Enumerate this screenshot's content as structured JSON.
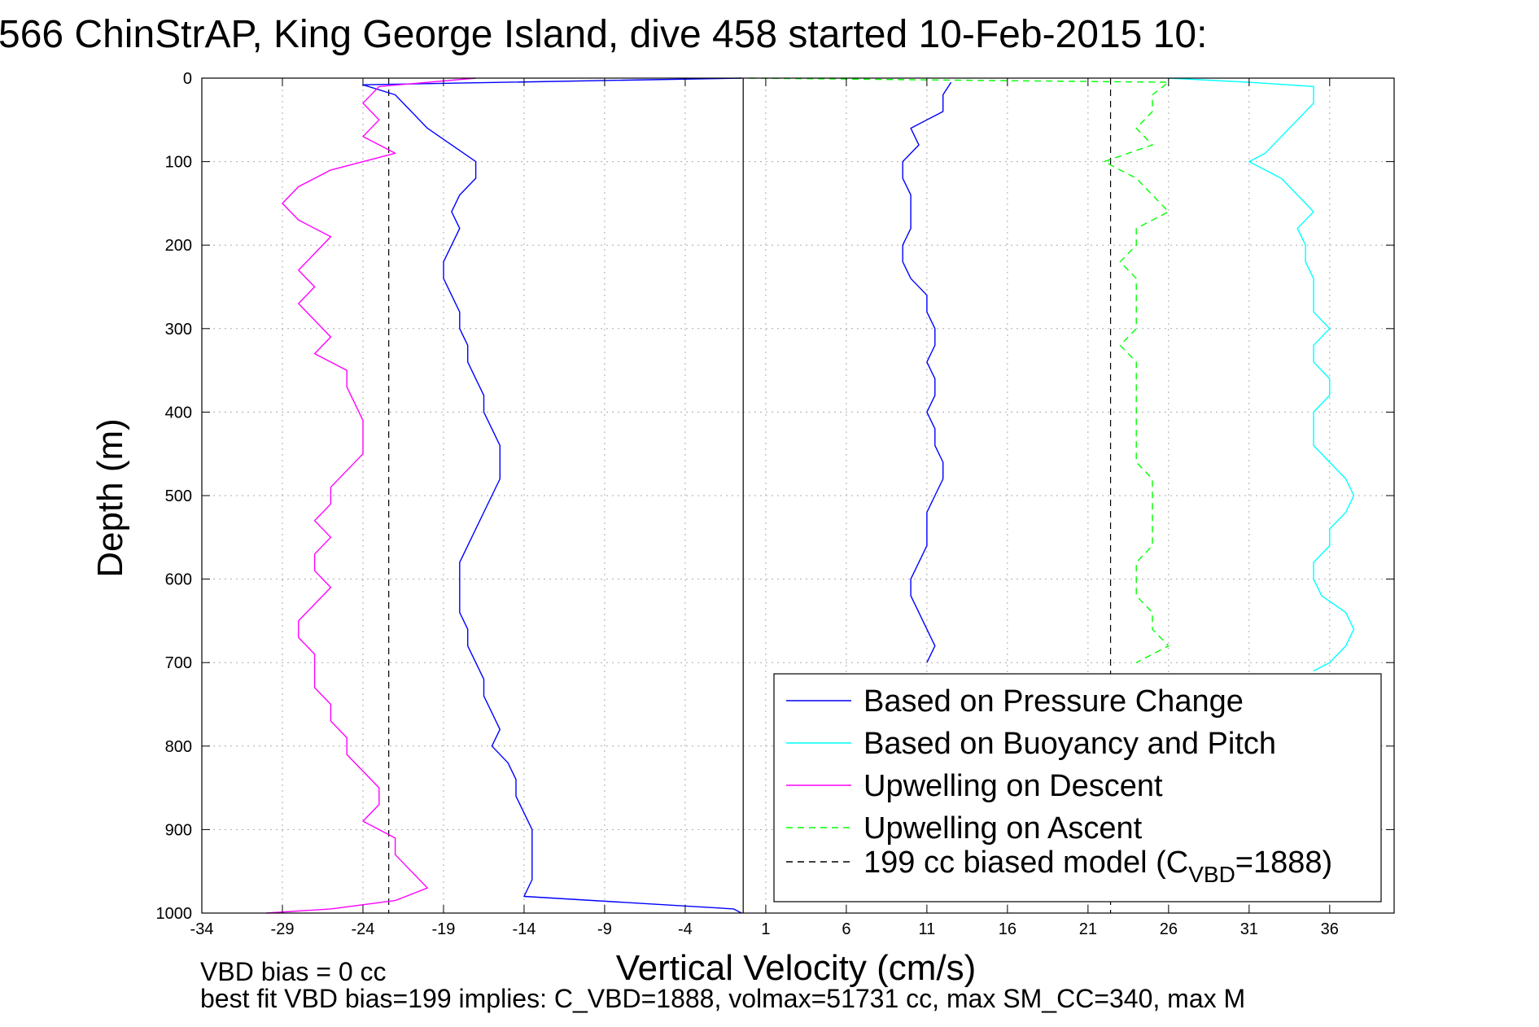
{
  "figure": {
    "title": "566 ChinStrAP, King George Island, dive 458 started 10-Feb-2015 10:",
    "footer_line1": "VBD bias = 0 cc",
    "footer_line2": "best fit VBD bias=199 implies: C_VBD=1888, volmax=51731 cc, max SM_CC=340, max M"
  },
  "chart_data": {
    "type": "line",
    "xlabel": "Vertical Velocity (cm/s)",
    "ylabel": "Depth (m)",
    "xlim": [
      -34,
      40
    ],
    "ylim": [
      0,
      1000
    ],
    "y_reversed": true,
    "grid": true,
    "x_ticks": [
      -34,
      -29,
      -24,
      -19,
      -14,
      -9,
      -4,
      1,
      6,
      11,
      16,
      21,
      26,
      31,
      36
    ],
    "y_ticks": [
      0,
      100,
      200,
      300,
      400,
      500,
      600,
      700,
      800,
      900,
      1000
    ],
    "legend_position": "bottom-right",
    "legend": [
      {
        "label": "Based on Pressure Change",
        "color": "#0000ff",
        "dash": "solid"
      },
      {
        "label": "Based on Buoyancy and Pitch",
        "color": "#00ffff",
        "dash": "solid"
      },
      {
        "label": "Upwelling on Descent",
        "color": "#ff00ff",
        "dash": "solid"
      },
      {
        "label": "Upwelling on Ascent",
        "color": "#00ff00",
        "dash": "dashed"
      },
      {
        "label_pre": "199 cc biased model (C",
        "label_sub": "VBD",
        "label_post": "=1888)",
        "color": "#000000",
        "dash": "dashed"
      }
    ],
    "vertical_lines": [
      {
        "x": -22.4,
        "color": "#000000",
        "dash": "dashed",
        "note": "biased model descent"
      },
      {
        "x": 22.4,
        "color": "#000000",
        "dash": "dashed",
        "note": "biased model ascent"
      },
      {
        "x": -0.4,
        "color": "#000000",
        "dash": "solid",
        "note": "zero reference"
      }
    ],
    "series": [
      {
        "name": "Based on Pressure Change (descent)",
        "color": "#0000ff",
        "dash": "solid",
        "points": [
          [
            -0.5,
            0
          ],
          [
            -24,
            8
          ],
          [
            -22,
            20
          ],
          [
            -21,
            40
          ],
          [
            -20,
            60
          ],
          [
            -18.5,
            80
          ],
          [
            -17,
            100
          ],
          [
            -17,
            120
          ],
          [
            -18,
            140
          ],
          [
            -18.5,
            160
          ],
          [
            -18,
            180
          ],
          [
            -18.5,
            200
          ],
          [
            -19,
            220
          ],
          [
            -19,
            240
          ],
          [
            -18.5,
            260
          ],
          [
            -18,
            280
          ],
          [
            -18,
            300
          ],
          [
            -17.5,
            320
          ],
          [
            -17.5,
            340
          ],
          [
            -17,
            360
          ],
          [
            -16.5,
            380
          ],
          [
            -16.5,
            400
          ],
          [
            -16,
            420
          ],
          [
            -15.5,
            440
          ],
          [
            -15.5,
            460
          ],
          [
            -15.5,
            480
          ],
          [
            -16,
            500
          ],
          [
            -16.5,
            520
          ],
          [
            -17,
            540
          ],
          [
            -17.5,
            560
          ],
          [
            -18,
            580
          ],
          [
            -18,
            600
          ],
          [
            -18,
            620
          ],
          [
            -18,
            640
          ],
          [
            -17.5,
            660
          ],
          [
            -17.5,
            680
          ],
          [
            -17,
            700
          ],
          [
            -16.5,
            720
          ],
          [
            -16.5,
            740
          ],
          [
            -16,
            760
          ],
          [
            -15.5,
            780
          ],
          [
            -16,
            800
          ],
          [
            -15,
            820
          ],
          [
            -14.5,
            840
          ],
          [
            -14.5,
            860
          ],
          [
            -14,
            880
          ],
          [
            -13.5,
            900
          ],
          [
            -13.5,
            920
          ],
          [
            -13.5,
            940
          ],
          [
            -13.5,
            960
          ],
          [
            -14,
            980
          ],
          [
            -1,
            995
          ],
          [
            -0.5,
            1000
          ]
        ]
      },
      {
        "name": "Based on Pressure Change (ascent)",
        "color": "#0000ff",
        "dash": "solid",
        "points": [
          [
            12.5,
            5
          ],
          [
            12,
            20
          ],
          [
            12,
            40
          ],
          [
            10,
            60
          ],
          [
            10.5,
            80
          ],
          [
            9.5,
            100
          ],
          [
            9.5,
            120
          ],
          [
            10,
            140
          ],
          [
            10,
            160
          ],
          [
            10,
            180
          ],
          [
            9.5,
            200
          ],
          [
            9.5,
            220
          ],
          [
            10,
            240
          ],
          [
            11,
            260
          ],
          [
            11,
            280
          ],
          [
            11.5,
            300
          ],
          [
            11.5,
            320
          ],
          [
            11,
            340
          ],
          [
            11.5,
            360
          ],
          [
            11.5,
            380
          ],
          [
            11,
            400
          ],
          [
            11.5,
            420
          ],
          [
            11.5,
            440
          ],
          [
            12,
            460
          ],
          [
            12,
            480
          ],
          [
            11.5,
            500
          ],
          [
            11,
            520
          ],
          [
            11,
            540
          ],
          [
            11,
            560
          ],
          [
            10.5,
            580
          ],
          [
            10,
            600
          ],
          [
            10,
            620
          ],
          [
            10.5,
            640
          ],
          [
            11,
            660
          ],
          [
            11.5,
            680
          ],
          [
            11,
            700
          ]
        ]
      },
      {
        "name": "Based on Buoyancy and Pitch (ascent)",
        "color": "#00ffff",
        "dash": "solid",
        "points": [
          [
            26,
            0
          ],
          [
            31,
            5
          ],
          [
            35,
            10
          ],
          [
            35,
            30
          ],
          [
            34,
            50
          ],
          [
            33,
            70
          ],
          [
            32,
            90
          ],
          [
            31,
            100
          ],
          [
            33,
            120
          ],
          [
            34,
            140
          ],
          [
            35,
            160
          ],
          [
            34,
            180
          ],
          [
            34.5,
            200
          ],
          [
            34.5,
            220
          ],
          [
            35,
            240
          ],
          [
            35,
            260
          ],
          [
            35,
            280
          ],
          [
            36,
            300
          ],
          [
            35,
            320
          ],
          [
            35,
            340
          ],
          [
            36,
            360
          ],
          [
            36,
            380
          ],
          [
            35,
            400
          ],
          [
            35,
            420
          ],
          [
            35,
            440
          ],
          [
            36,
            460
          ],
          [
            37,
            480
          ],
          [
            37.5,
            500
          ],
          [
            37,
            520
          ],
          [
            36,
            540
          ],
          [
            36,
            560
          ],
          [
            35,
            580
          ],
          [
            35,
            600
          ],
          [
            35.5,
            620
          ],
          [
            37,
            640
          ],
          [
            37.5,
            660
          ],
          [
            37,
            680
          ],
          [
            36,
            700
          ],
          [
            35,
            710
          ]
        ]
      },
      {
        "name": "Upwelling on Descent",
        "color": "#ff00ff",
        "dash": "solid",
        "points": [
          [
            -17,
            0
          ],
          [
            -23,
            10
          ],
          [
            -24,
            30
          ],
          [
            -23,
            50
          ],
          [
            -24,
            70
          ],
          [
            -22,
            90
          ],
          [
            -26,
            110
          ],
          [
            -28,
            130
          ],
          [
            -29,
            150
          ],
          [
            -28,
            170
          ],
          [
            -26,
            190
          ],
          [
            -27,
            210
          ],
          [
            -28,
            230
          ],
          [
            -27,
            250
          ],
          [
            -28,
            270
          ],
          [
            -27,
            290
          ],
          [
            -26,
            310
          ],
          [
            -27,
            330
          ],
          [
            -25,
            350
          ],
          [
            -25,
            370
          ],
          [
            -24.5,
            390
          ],
          [
            -24,
            410
          ],
          [
            -24,
            430
          ],
          [
            -24,
            450
          ],
          [
            -25,
            470
          ],
          [
            -26,
            490
          ],
          [
            -26,
            510
          ],
          [
            -27,
            530
          ],
          [
            -26,
            550
          ],
          [
            -27,
            570
          ],
          [
            -27,
            590
          ],
          [
            -26,
            610
          ],
          [
            -27,
            630
          ],
          [
            -28,
            650
          ],
          [
            -28,
            670
          ],
          [
            -27,
            690
          ],
          [
            -27,
            710
          ],
          [
            -27,
            730
          ],
          [
            -26,
            750
          ],
          [
            -26,
            770
          ],
          [
            -25,
            790
          ],
          [
            -25,
            810
          ],
          [
            -24,
            830
          ],
          [
            -23,
            850
          ],
          [
            -23,
            870
          ],
          [
            -24,
            890
          ],
          [
            -22,
            910
          ],
          [
            -22,
            930
          ],
          [
            -21,
            950
          ],
          [
            -20,
            970
          ],
          [
            -22,
            985
          ],
          [
            -26,
            995
          ],
          [
            -30,
            1000
          ]
        ]
      },
      {
        "name": "Upwelling on Ascent",
        "color": "#00ff00",
        "dash": "dashed",
        "points": [
          [
            0,
            0
          ],
          [
            26,
            5
          ],
          [
            25,
            20
          ],
          [
            25,
            40
          ],
          [
            24,
            60
          ],
          [
            25,
            80
          ],
          [
            22,
            100
          ],
          [
            24,
            120
          ],
          [
            25,
            140
          ],
          [
            26,
            160
          ],
          [
            24,
            180
          ],
          [
            24,
            200
          ],
          [
            23,
            220
          ],
          [
            24,
            240
          ],
          [
            24,
            260
          ],
          [
            24,
            280
          ],
          [
            24,
            300
          ],
          [
            23,
            320
          ],
          [
            24,
            340
          ],
          [
            24,
            360
          ],
          [
            24,
            380
          ],
          [
            24,
            400
          ],
          [
            24,
            420
          ],
          [
            24,
            440
          ],
          [
            24,
            460
          ],
          [
            25,
            480
          ],
          [
            25,
            500
          ],
          [
            25,
            520
          ],
          [
            25,
            540
          ],
          [
            25,
            560
          ],
          [
            24,
            580
          ],
          [
            24,
            600
          ],
          [
            24,
            620
          ],
          [
            25,
            640
          ],
          [
            25,
            660
          ],
          [
            26,
            680
          ],
          [
            24,
            700
          ]
        ]
      }
    ]
  }
}
